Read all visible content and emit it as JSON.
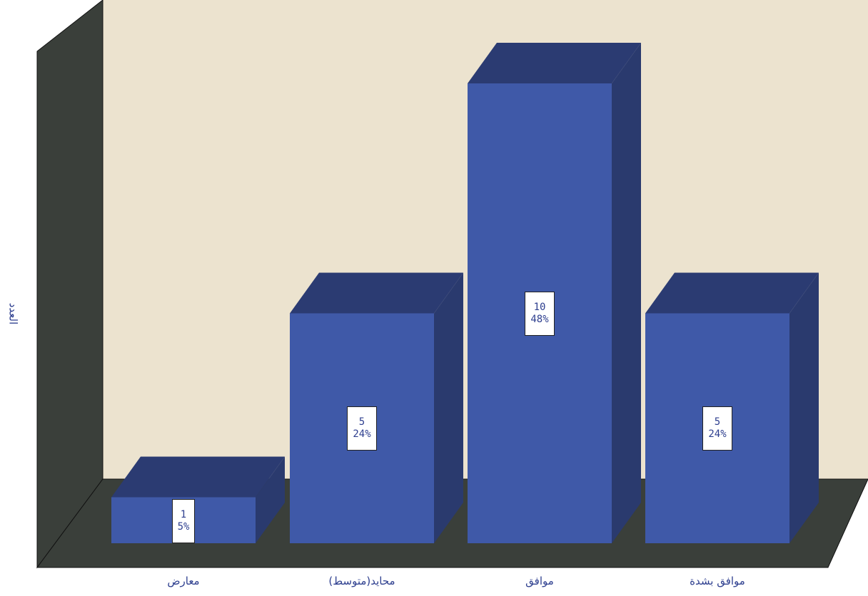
{
  "chart_data": {
    "type": "bar",
    "ylabel": "العدد",
    "xlabel": "",
    "categories": [
      "معارض",
      "محايد(متوسط)",
      "موافق",
      "موافق بشدة"
    ],
    "values": [
      1,
      5,
      10,
      5
    ],
    "percent_labels": [
      "5%",
      "24%",
      "48%",
      "24%"
    ],
    "ylim": [
      0,
      11
    ],
    "style": "3d",
    "grid": false,
    "colors": {
      "bar_front": "#3f59a8",
      "bar_top": "#2b3b72",
      "bar_side": "#2a3a6e",
      "back_wall": "#ece3cf",
      "side_wall": "#3a3f3a",
      "floor": "#3a3f3a",
      "text": "#2e3f8f"
    }
  }
}
